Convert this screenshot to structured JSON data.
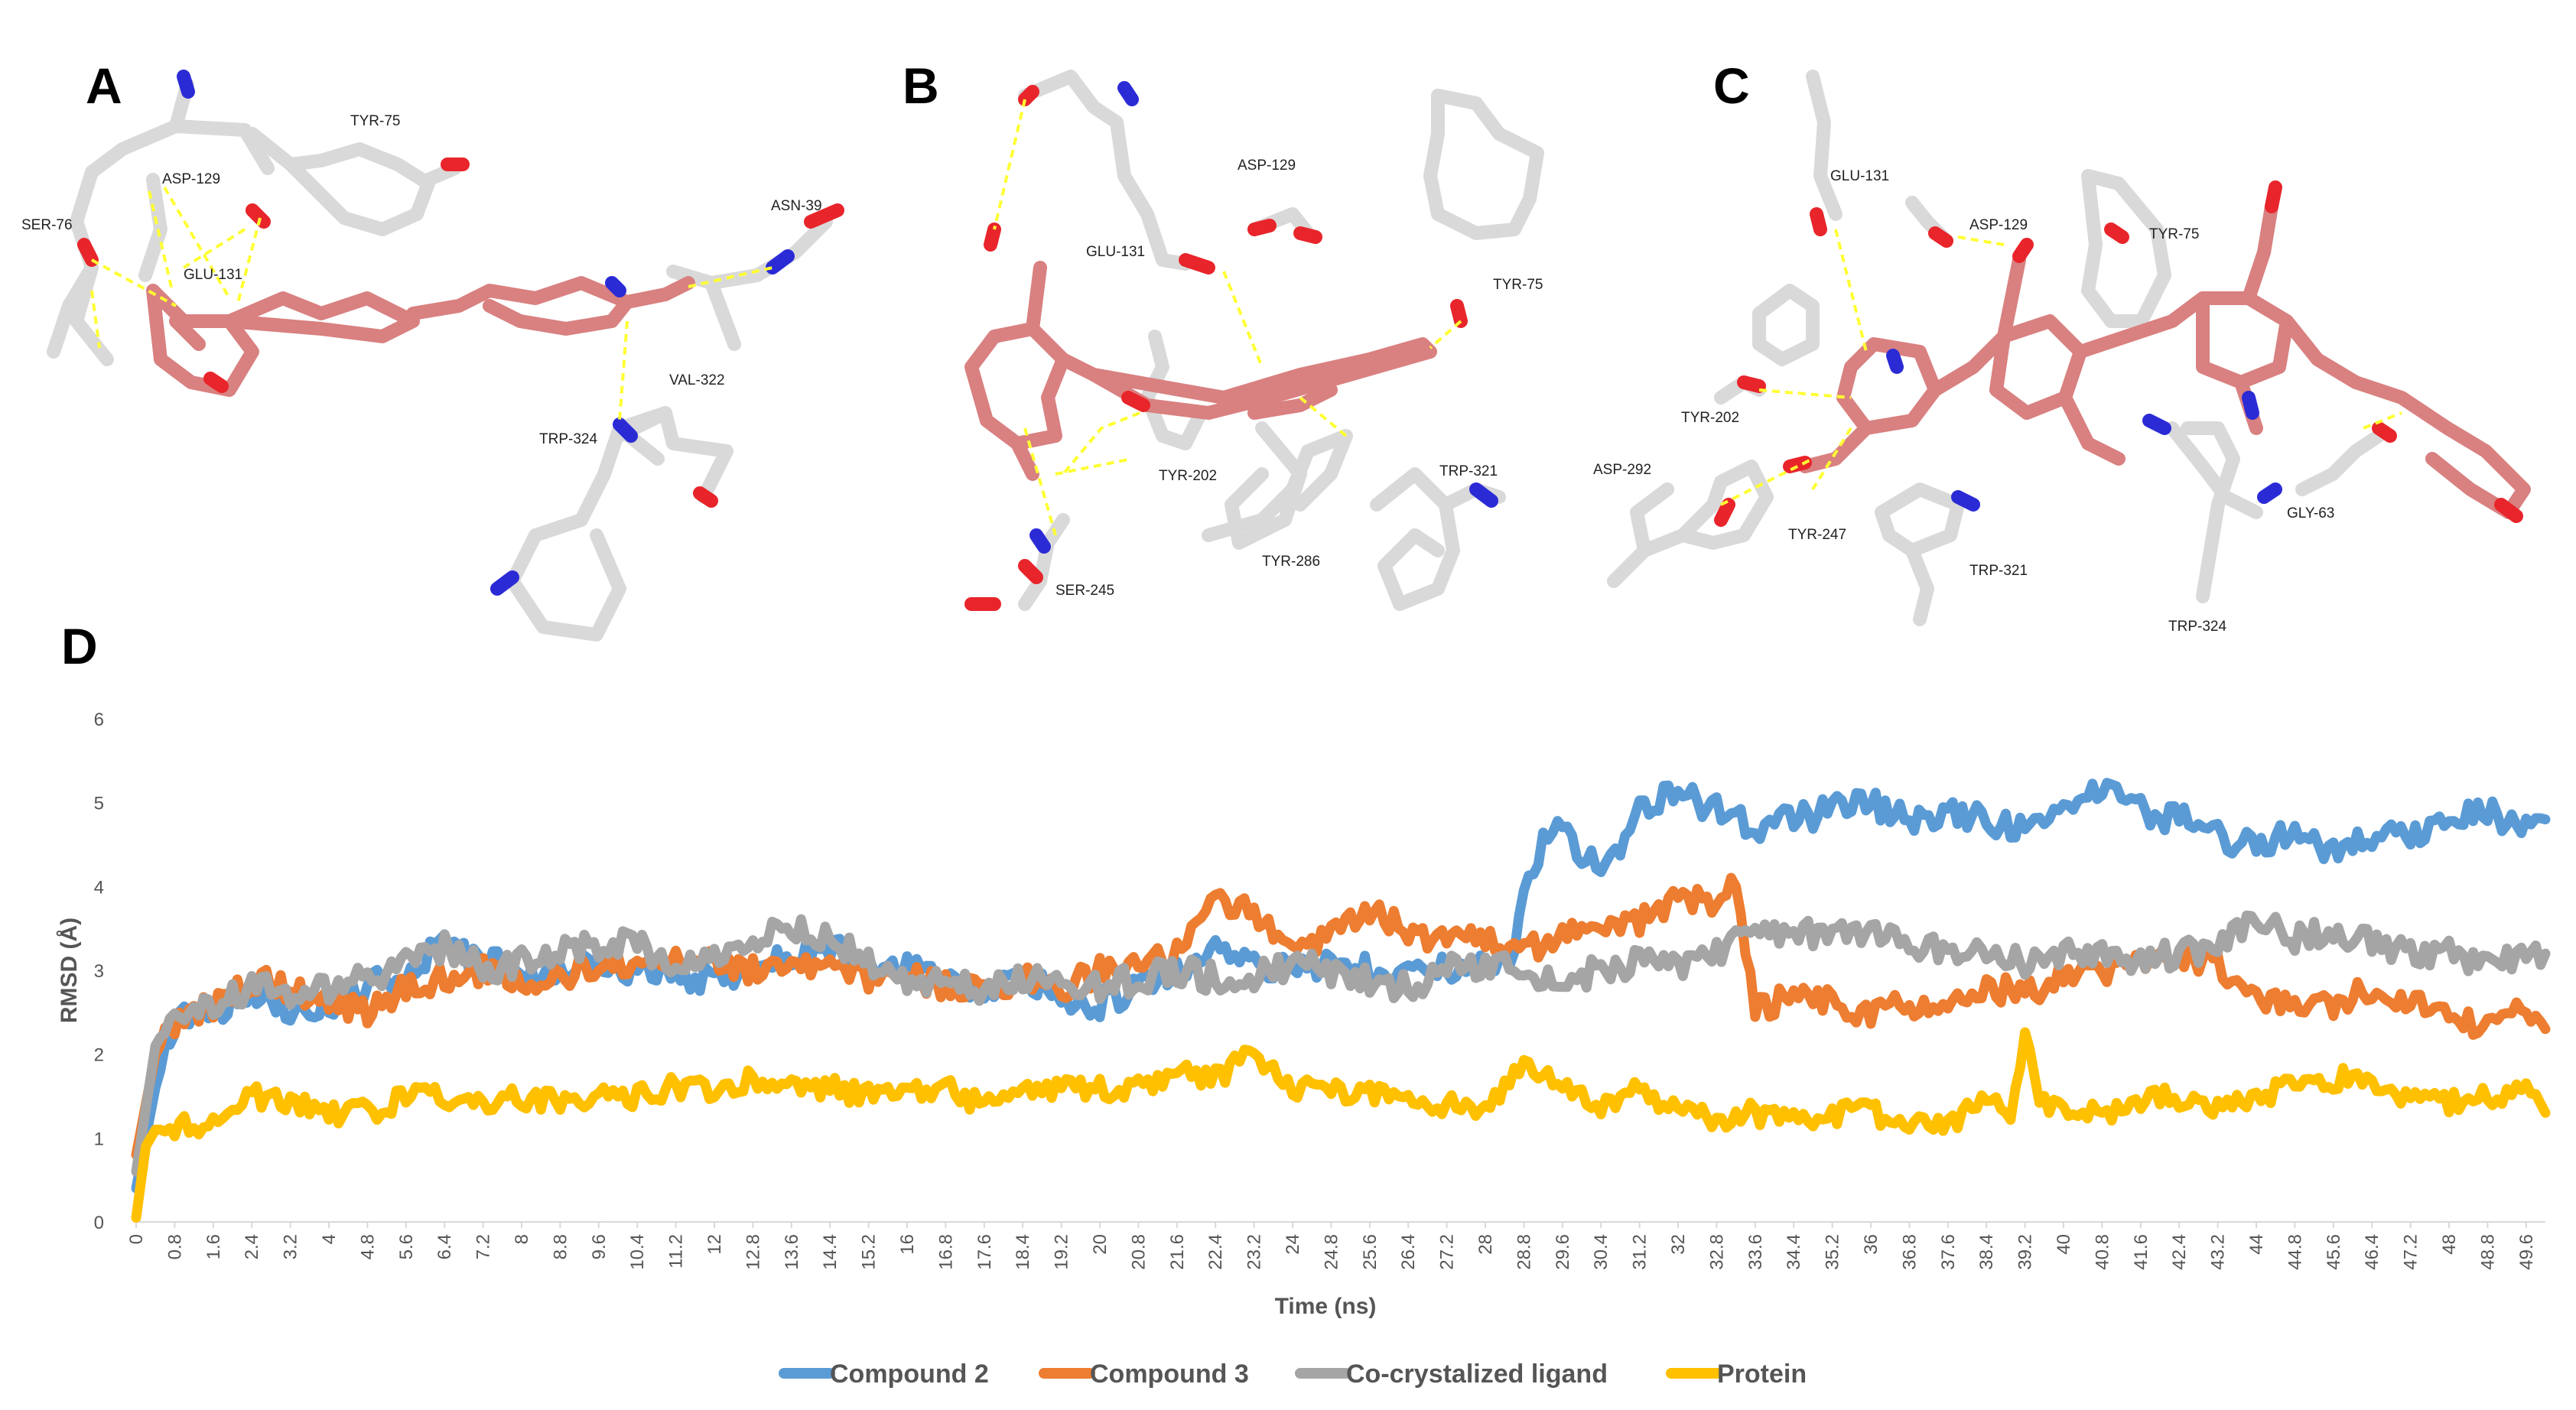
{
  "panels": {
    "A": {
      "letter": "A",
      "residues": [
        "TYR-75",
        "ASP-129",
        "SER-76",
        "GLU-131",
        "ASN-39",
        "VAL-322",
        "TRP-324"
      ]
    },
    "B": {
      "letter": "B",
      "residues": [
        "ASP-129",
        "GLU-131",
        "TYR-75",
        "TYR-202",
        "TRP-321",
        "TYR-286",
        "SER-245"
      ]
    },
    "C": {
      "letter": "C",
      "residues": [
        "GLU-131",
        "ASP-129",
        "TYR-75",
        "TYR-202",
        "ASP-292",
        "TYR-247",
        "TRP-321",
        "GLY-63",
        "TRP-324"
      ]
    },
    "D": {
      "letter": "D"
    }
  },
  "colors": {
    "ligand": "#d98080",
    "protein_stick": "#d9d9d9",
    "oxygen": "#e8252b",
    "nitrogen": "#2b2bd6",
    "hbond": "#ffff33"
  },
  "chart_data": {
    "type": "line",
    "xlabel": "Time (ns)",
    "ylabel": "RMSD (Å)",
    "ylim": [
      0,
      6
    ],
    "yticks": [
      "0",
      "1",
      "2",
      "3",
      "4",
      "5",
      "6"
    ],
    "xlim": [
      0,
      50
    ],
    "xticks": [
      "0",
      "0.8",
      "1.6",
      "2.4",
      "3.2",
      "4",
      "4.8",
      "5.6",
      "6.4",
      "7.2",
      "8",
      "8.8",
      "9.6",
      "10.4",
      "11.2",
      "12",
      "12.8",
      "13.6",
      "14.4",
      "15.2",
      "16",
      "16.8",
      "17.6",
      "18.4",
      "19.2",
      "20",
      "20.8",
      "21.6",
      "22.4",
      "23.2",
      "24",
      "24.8",
      "25.6",
      "26.4",
      "27.2",
      "28",
      "28.8",
      "29.6",
      "30.4",
      "31.2",
      "32",
      "32.8",
      "33.6",
      "34.4",
      "35.2",
      "36",
      "36.8",
      "37.6",
      "38.4",
      "39.2",
      "40",
      "40.8",
      "41.6",
      "42.4",
      "43.2",
      "44",
      "44.8",
      "45.6",
      "46.4",
      "47.2",
      "48",
      "48.8",
      "49.6"
    ],
    "legend_position": "bottom",
    "grid": false,
    "series": [
      {
        "name": "Compound 2",
        "color": "#5b9bd5",
        "x": [
          0,
          0.4,
          0.8,
          1.6,
          2.4,
          3.2,
          4,
          4.8,
          5.6,
          6.4,
          7.2,
          8,
          8.8,
          9.6,
          10.4,
          11.2,
          12,
          12.8,
          13.6,
          14.4,
          15.2,
          16,
          16.8,
          17.6,
          18.4,
          19.2,
          20,
          20.8,
          21.6,
          22.4,
          23.2,
          24,
          24.8,
          25.6,
          26.4,
          27.2,
          28,
          28.6,
          28.8,
          29.2,
          29.6,
          30,
          30.4,
          30.8,
          31.2,
          32,
          32.8,
          33.6,
          34.4,
          35.2,
          36,
          36.8,
          37.6,
          38.4,
          39.2,
          40,
          40.8,
          41.6,
          42.4,
          43.2,
          44,
          44.8,
          45.6,
          46.4,
          47.2,
          48,
          48.8,
          49.6,
          50
        ],
        "y": [
          0.4,
          1.6,
          2.4,
          2.5,
          2.8,
          2.5,
          2.6,
          2.8,
          3.0,
          3.3,
          3.1,
          3.0,
          2.9,
          3.1,
          3.0,
          2.9,
          2.9,
          3.0,
          3.2,
          3.3,
          3.0,
          3.0,
          2.9,
          2.8,
          2.9,
          2.7,
          2.6,
          2.8,
          3.0,
          3.2,
          3.1,
          3.0,
          3.1,
          3.0,
          3.0,
          3.0,
          3.1,
          3.2,
          3.9,
          4.5,
          4.8,
          4.3,
          4.3,
          4.5,
          5.0,
          5.1,
          4.9,
          4.7,
          4.8,
          4.9,
          5.0,
          4.8,
          4.9,
          4.8,
          4.7,
          4.9,
          5.2,
          4.9,
          4.8,
          4.6,
          4.5,
          4.6,
          4.4,
          4.6,
          4.6,
          4.8,
          4.9,
          4.7,
          4.8
        ]
      },
      {
        "name": "Compound 3",
        "color": "#ed7d31",
        "x": [
          0,
          0.4,
          0.8,
          1.6,
          2.4,
          3.2,
          4,
          4.8,
          5.6,
          6.4,
          7.2,
          8,
          8.8,
          9.6,
          10.4,
          11.2,
          12,
          12.8,
          13.6,
          14.4,
          15.2,
          16,
          16.8,
          17.6,
          18.4,
          19.2,
          20,
          20.8,
          21.6,
          22.4,
          23.2,
          24,
          24.8,
          25.6,
          26.4,
          27.2,
          28,
          28.8,
          29.6,
          30.4,
          31.2,
          32,
          32.8,
          33.2,
          33.6,
          34.4,
          35.2,
          36,
          36.8,
          37.6,
          38.4,
          39.2,
          40,
          40.8,
          41.6,
          42.4,
          43.2,
          44,
          44.8,
          45.6,
          46.4,
          47.2,
          48,
          48.8,
          49.6,
          50
        ],
        "y": [
          0.8,
          2.0,
          2.4,
          2.6,
          2.9,
          2.8,
          2.6,
          2.5,
          2.8,
          2.9,
          3.0,
          2.9,
          2.9,
          3.1,
          3.0,
          3.2,
          3.1,
          3.0,
          3.1,
          3.0,
          2.9,
          2.9,
          2.8,
          2.8,
          2.9,
          2.8,
          3.0,
          3.1,
          3.2,
          3.9,
          3.7,
          3.2,
          3.5,
          3.7,
          3.5,
          3.3,
          3.4,
          3.2,
          3.4,
          3.5,
          3.6,
          3.9,
          3.8,
          4.0,
          2.5,
          2.7,
          2.6,
          2.5,
          2.6,
          2.7,
          2.8,
          2.7,
          2.9,
          3.0,
          3.1,
          3.2,
          3.1,
          2.7,
          2.5,
          2.6,
          2.8,
          2.6,
          2.4,
          2.3,
          2.5,
          2.3
        ]
      },
      {
        "name": "Co-crystalized ligand",
        "color": "#a5a5a5",
        "x": [
          0,
          0.4,
          0.8,
          1.6,
          2.4,
          3.2,
          4,
          4.8,
          5.6,
          6.4,
          7.2,
          8,
          8.8,
          9.6,
          10.4,
          11.2,
          12,
          12.8,
          13.6,
          14.4,
          15.2,
          16,
          16.8,
          17.6,
          18.4,
          19.2,
          20,
          20.8,
          21.6,
          22.4,
          23.2,
          24,
          24.8,
          25.6,
          26.4,
          27.2,
          28,
          28.8,
          29.6,
          30.4,
          31.2,
          32,
          32.8,
          33.6,
          34.4,
          35.2,
          36,
          36.8,
          37.6,
          38.4,
          39.2,
          40,
          40.8,
          41.6,
          42.4,
          43.2,
          44,
          44.8,
          45.6,
          46.4,
          47.2,
          48,
          48.8,
          49.6,
          50
        ],
        "y": [
          0.6,
          2.1,
          2.5,
          2.6,
          2.8,
          2.7,
          2.8,
          2.9,
          3.1,
          3.3,
          3.0,
          3.1,
          3.2,
          3.3,
          3.3,
          3.1,
          3.2,
          3.4,
          3.5,
          3.4,
          3.1,
          2.9,
          2.8,
          2.8,
          2.9,
          2.9,
          2.8,
          2.9,
          3.0,
          2.9,
          2.9,
          3.1,
          3.0,
          2.9,
          2.8,
          3.0,
          3.1,
          3.0,
          2.9,
          3.0,
          3.1,
          3.0,
          3.2,
          3.5,
          3.4,
          3.5,
          3.4,
          3.3,
          3.2,
          3.2,
          3.1,
          3.2,
          3.2,
          3.1,
          3.2,
          3.3,
          3.6,
          3.4,
          3.5,
          3.3,
          3.2,
          3.2,
          3.1,
          3.2,
          3.2
        ]
      },
      {
        "name": "Protein",
        "color": "#ffc000",
        "x": [
          0,
          0.2,
          0.4,
          0.8,
          1.6,
          2.4,
          3.2,
          4,
          4.8,
          5.6,
          6.4,
          7.2,
          8,
          8.8,
          9.6,
          10.4,
          11.2,
          12,
          12.8,
          13.6,
          14.4,
          15.2,
          16,
          16.8,
          17.6,
          18.4,
          19.2,
          20,
          20.8,
          21.6,
          22.4,
          23.2,
          24,
          24.8,
          25.6,
          26.4,
          27.2,
          28,
          28.8,
          29.6,
          30.4,
          31.2,
          32,
          32.8,
          33.6,
          34.4,
          35.2,
          36,
          36.8,
          37.6,
          38.4,
          38.9,
          39.2,
          39.5,
          40,
          40.8,
          41.6,
          42.4,
          43.2,
          44,
          44.8,
          45.6,
          46.4,
          47.2,
          48,
          48.8,
          49.6,
          50
        ],
        "y": [
          0.05,
          0.9,
          1.1,
          1.1,
          1.2,
          1.5,
          1.4,
          1.3,
          1.3,
          1.5,
          1.5,
          1.4,
          1.5,
          1.4,
          1.5,
          1.5,
          1.6,
          1.6,
          1.7,
          1.6,
          1.6,
          1.5,
          1.5,
          1.6,
          1.4,
          1.5,
          1.6,
          1.6,
          1.6,
          1.8,
          1.7,
          2.0,
          1.6,
          1.6,
          1.5,
          1.5,
          1.4,
          1.3,
          1.9,
          1.6,
          1.4,
          1.6,
          1.3,
          1.2,
          1.3,
          1.2,
          1.3,
          1.3,
          1.2,
          1.2,
          1.4,
          1.3,
          2.2,
          1.4,
          1.3,
          1.3,
          1.4,
          1.5,
          1.4,
          1.5,
          1.6,
          1.7,
          1.7,
          1.5,
          1.4,
          1.5,
          1.6,
          1.3
        ]
      }
    ]
  }
}
